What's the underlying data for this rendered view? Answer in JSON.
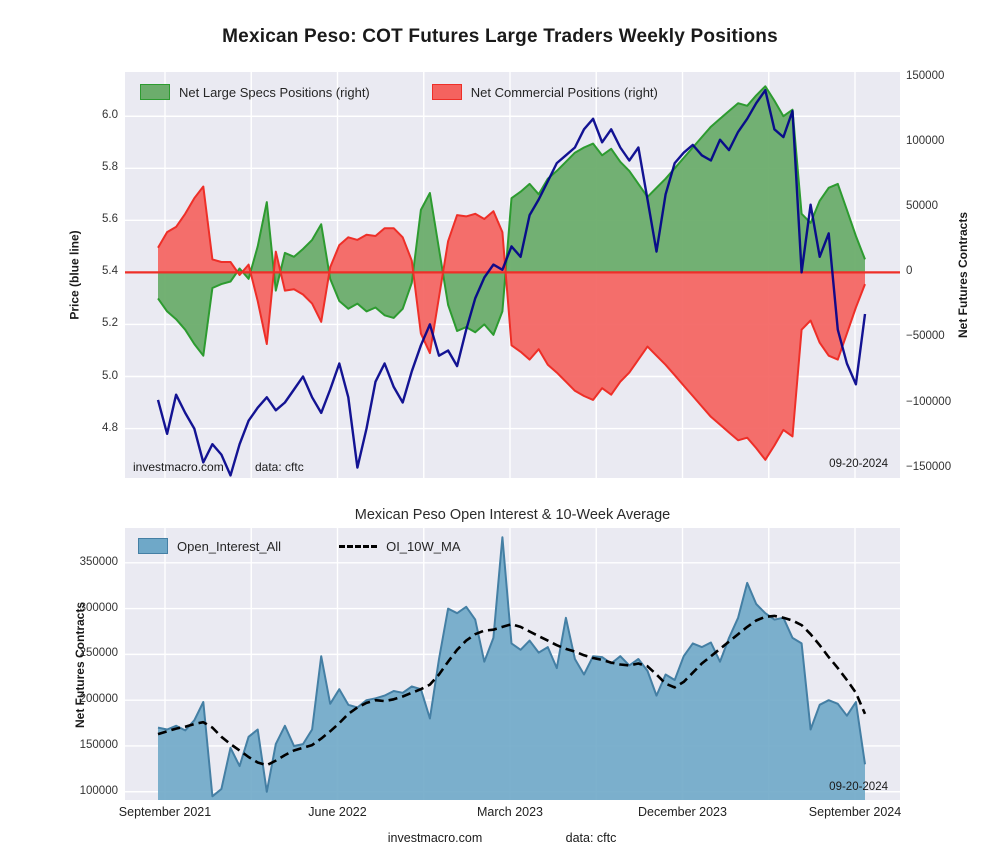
{
  "figure": {
    "title": "Mexican Peso: COT Futures Large Traders Weekly Positions",
    "footer": {
      "watermark": "investmacro.com",
      "source": "data: cftc"
    }
  },
  "top_chart": {
    "legend": [
      {
        "label": "Net Large Specs Positions (right)",
        "swatch_color": "#6cad6c",
        "edge_color": "#2d9b30"
      },
      {
        "label": "Net Commercial Positions (right)",
        "swatch_color": "#f4635f",
        "edge_color": "#ee2f28"
      }
    ],
    "left_axis": {
      "label": "Price (blue line)",
      "tick_labels": [
        "6.0",
        "5.8",
        "5.6",
        "5.4",
        "5.2",
        "5.0",
        "4.8"
      ]
    },
    "right_axis": {
      "label": "Net Futures Contracts",
      "tick_labels": [
        "150000",
        "100000",
        "50000",
        "0",
        "−50000",
        "−100000",
        "−150000"
      ]
    },
    "inner_texts": {
      "watermark": "investmacro.com",
      "source": "data: cftc",
      "date": "09-20-2024"
    }
  },
  "bottom_chart": {
    "title": "Mexican Peso Open Interest & 10-Week Average",
    "legend": [
      {
        "label": "Open_Interest_All",
        "swatch_color": "#6fa8c8",
        "edge_color": "#447fa4"
      },
      {
        "label": "OI_10W_MA",
        "line_color": "#000000",
        "style": "dashed"
      }
    ],
    "left_axis": {
      "label": "Net Futures Contracts",
      "tick_labels": [
        "350000",
        "300000",
        "250000",
        "200000",
        "150000",
        "100000"
      ]
    },
    "x_axis": {
      "tick_labels": [
        "September 2021",
        "June 2022",
        "March 2023",
        "December 2023",
        "September 2024"
      ]
    },
    "inner_texts": {
      "date": "09-20-2024"
    }
  },
  "chart_data": [
    {
      "type": "area",
      "title": "Mexican Peso: COT Futures Large Traders Weekly Positions",
      "x_start_label": "September 2021",
      "x_end_label": "September 2024",
      "sampling": "79 evenly spaced (~biweekly) samples, Sep 2021 to Sep 20 2024",
      "left_ylabel": "Price (blue line)",
      "right_ylabel": "Net Futures Contracts",
      "left_ylim": [
        4.61,
        6.17
      ],
      "right_ylim": [
        -158000,
        154000
      ],
      "grid": true,
      "legend_position": "upper left",
      "series": [
        {
          "name": "Price",
          "axis": "left",
          "type": "line",
          "color": "#00008b",
          "values": [
            4.91,
            4.78,
            4.93,
            4.86,
            4.8,
            4.67,
            4.74,
            4.7,
            4.62,
            4.74,
            4.83,
            4.88,
            4.92,
            4.87,
            4.9,
            4.95,
            5.0,
            4.92,
            4.86,
            4.95,
            5.05,
            4.92,
            4.65,
            4.8,
            4.98,
            5.05,
            4.96,
            4.9,
            5.02,
            5.12,
            5.2,
            5.08,
            5.1,
            5.04,
            5.18,
            5.3,
            5.38,
            5.43,
            5.41,
            5.5,
            5.46,
            5.62,
            5.68,
            5.75,
            5.82,
            5.85,
            5.88,
            5.95,
            5.99,
            5.9,
            5.95,
            5.88,
            5.83,
            5.88,
            5.68,
            5.48,
            5.7,
            5.82,
            5.86,
            5.89,
            5.85,
            5.83,
            5.91,
            5.87,
            5.94,
            5.99,
            6.05,
            6.1,
            5.95,
            5.92,
            6.02,
            5.4,
            5.66,
            5.46,
            5.55,
            5.18,
            5.05,
            4.97,
            5.24
          ]
        },
        {
          "name": "Net Large Specs Positions (right)",
          "axis": "right",
          "type": "area",
          "fill": "#6cad6c",
          "edge": "#2d9b30",
          "values": [
            -20000,
            -30000,
            -36000,
            -44000,
            -55000,
            -64000,
            -12000,
            -9000,
            -7000,
            3000,
            -5000,
            20000,
            54000,
            -14000,
            15000,
            12000,
            18000,
            25000,
            37000,
            -5000,
            -22000,
            -28000,
            -24000,
            -30000,
            -27000,
            -33000,
            -35000,
            -28000,
            -8000,
            48000,
            61000,
            18000,
            -25000,
            -45000,
            -42000,
            -46000,
            -40000,
            -48000,
            -30000,
            57000,
            62000,
            68000,
            60000,
            72000,
            78000,
            85000,
            92000,
            96000,
            99000,
            90000,
            95000,
            85000,
            78000,
            68000,
            58000,
            65000,
            72000,
            80000,
            88000,
            96000,
            104000,
            112000,
            118000,
            124000,
            130000,
            128000,
            136000,
            143000,
            132000,
            120000,
            125000,
            45000,
            38000,
            55000,
            65000,
            68000,
            48000,
            28000,
            10000
          ]
        },
        {
          "name": "Net Commercial Positions (right)",
          "axis": "right",
          "type": "area",
          "fill": "#f4635f",
          "edge": "#ee2f28",
          "values": [
            19000,
            31000,
            35000,
            45000,
            57000,
            66000,
            10000,
            8000,
            8000,
            -2000,
            6000,
            -22000,
            -55000,
            16000,
            -14000,
            -13000,
            -17000,
            -24000,
            -38000,
            4000,
            21000,
            27000,
            25000,
            29000,
            28000,
            34000,
            34000,
            27000,
            9000,
            -47000,
            -62000,
            -19000,
            24000,
            44000,
            43000,
            45000,
            41000,
            47000,
            31000,
            -56000,
            -61000,
            -67000,
            -59000,
            -71000,
            -77000,
            -84000,
            -91000,
            -95000,
            -98000,
            -89000,
            -94000,
            -84000,
            -77000,
            -67000,
            -57000,
            -64000,
            -71000,
            -79000,
            -87000,
            -95000,
            -103000,
            -111000,
            -117000,
            -123000,
            -129000,
            -127000,
            -135000,
            -144000,
            -133000,
            -121000,
            -126000,
            -44000,
            -37000,
            -54000,
            -64000,
            -67000,
            -47000,
            -27000,
            -9000
          ]
        }
      ],
      "annotations": [
        "investmacro.com",
        "data: cftc",
        "09-20-2024"
      ]
    },
    {
      "type": "area",
      "title": "Mexican Peso Open Interest & 10-Week Average",
      "x_tick_labels": [
        "September 2021",
        "June 2022",
        "March 2023",
        "December 2023",
        "September 2024"
      ],
      "ylabel": "Net Futures Contracts",
      "ylim": [
        91000,
        388000
      ],
      "grid": true,
      "legend_position": "upper left",
      "series": [
        {
          "name": "Open_Interest_All",
          "type": "area",
          "fill": "#6fa8c8",
          "edge": "#447fa4",
          "values": [
            170000,
            168000,
            172000,
            167000,
            178000,
            198000,
            95000,
            103000,
            148000,
            128000,
            160000,
            168000,
            100000,
            152000,
            172000,
            150000,
            152000,
            168000,
            248000,
            196000,
            212000,
            195000,
            192000,
            200000,
            202000,
            205000,
            210000,
            208000,
            215000,
            212000,
            180000,
            245000,
            300000,
            295000,
            302000,
            288000,
            242000,
            268000,
            378000,
            262000,
            255000,
            265000,
            252000,
            258000,
            235000,
            290000,
            245000,
            228000,
            248000,
            247000,
            240000,
            248000,
            238000,
            245000,
            232000,
            205000,
            228000,
            222000,
            248000,
            262000,
            258000,
            263000,
            242000,
            268000,
            290000,
            328000,
            305000,
            295000,
            288000,
            290000,
            268000,
            262000,
            168000,
            195000,
            200000,
            196000,
            183000,
            198000,
            130000
          ]
        },
        {
          "name": "OI_10W_MA",
          "type": "line",
          "style": "dashed",
          "color": "#000000",
          "values": [
            163000,
            166000,
            169000,
            171000,
            174000,
            176000,
            170000,
            160000,
            152000,
            145000,
            138000,
            132000,
            129000,
            134000,
            140000,
            145000,
            148000,
            151000,
            158000,
            166000,
            175000,
            185000,
            192000,
            197000,
            200000,
            199000,
            201000,
            204000,
            208000,
            212000,
            217000,
            228000,
            242000,
            255000,
            265000,
            272000,
            276000,
            277000,
            280000,
            283000,
            280000,
            275000,
            270000,
            265000,
            260000,
            256000,
            253000,
            249000,
            246000,
            244000,
            241000,
            239000,
            238000,
            240000,
            237000,
            228000,
            218000,
            214000,
            220000,
            230000,
            240000,
            248000,
            256000,
            264000,
            272000,
            280000,
            287000,
            291000,
            292000,
            290000,
            287000,
            282000,
            272000,
            260000,
            247000,
            235000,
            222000,
            208000,
            185000
          ]
        }
      ],
      "annotations": [
        "09-20-2024"
      ]
    }
  ]
}
